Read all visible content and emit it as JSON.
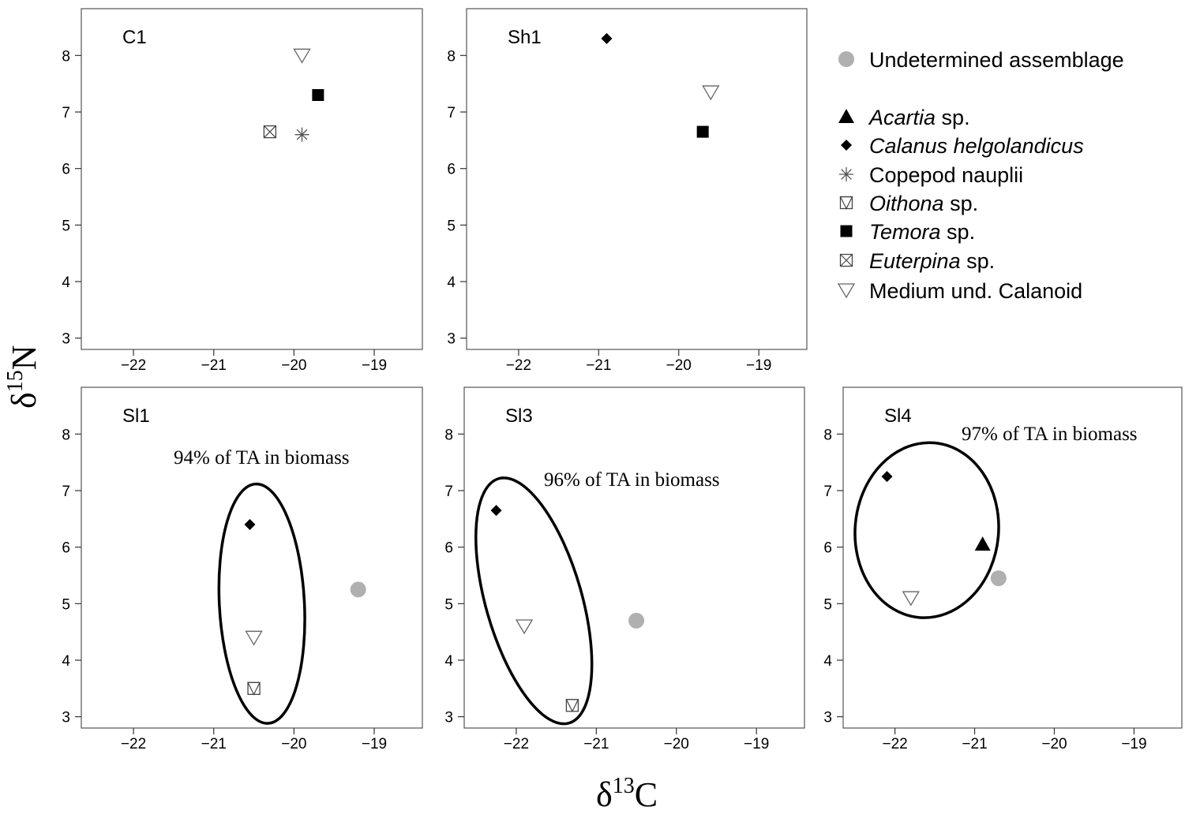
{
  "figure": {
    "xlabel_symbol": "δ",
    "xlabel_sup": "13",
    "xlabel_element": "C",
    "ylabel_symbol": "δ",
    "ylabel_sup": "15",
    "ylabel_element": "N"
  },
  "legend": [
    {
      "key": "undetermined",
      "marker": "circle-gray",
      "parts": [
        {
          "text": "Undetermined assemblage",
          "italic": false
        }
      ]
    },
    {
      "key": "acartia",
      "marker": "triangle-up",
      "parts": [
        {
          "text": "Acartia",
          "italic": true
        },
        {
          "text": " sp.",
          "italic": false
        }
      ]
    },
    {
      "key": "calanus",
      "marker": "diamond",
      "parts": [
        {
          "text": "Calanus helgolandicus",
          "italic": true
        }
      ]
    },
    {
      "key": "nauplii",
      "marker": "asterisk",
      "parts": [
        {
          "text": "Copepod nauplii",
          "italic": false
        }
      ]
    },
    {
      "key": "oithona",
      "marker": "square-triangle",
      "parts": [
        {
          "text": "Oithona",
          "italic": true
        },
        {
          "text": " sp.",
          "italic": false
        }
      ]
    },
    {
      "key": "temora",
      "marker": "square-filled",
      "parts": [
        {
          "text": "Temora",
          "italic": true
        },
        {
          "text": " sp.",
          "italic": false
        }
      ]
    },
    {
      "key": "euterpina",
      "marker": "square-x",
      "parts": [
        {
          "text": "Euterpina",
          "italic": true
        },
        {
          "text": " sp.",
          "italic": false
        }
      ]
    },
    {
      "key": "calanoid",
      "marker": "triangle-down",
      "parts": [
        {
          "text": "Medium und. Calanoid",
          "italic": false
        }
      ]
    }
  ],
  "chart_data": [
    {
      "type": "scatter",
      "panel": "C1",
      "xlim": [
        -22.65,
        -18.4
      ],
      "ylim": [
        2.8,
        8.8
      ],
      "xticks": [
        -22,
        -21,
        -20,
        -19
      ],
      "yticks": [
        3,
        4,
        5,
        6,
        7,
        8
      ],
      "points": [
        {
          "species": "calanoid",
          "x": -19.9,
          "y": 8.0
        },
        {
          "species": "temora",
          "x": -19.7,
          "y": 7.3
        },
        {
          "species": "euterpina",
          "x": -20.3,
          "y": 6.65
        },
        {
          "species": "nauplii",
          "x": -19.9,
          "y": 6.6
        }
      ]
    },
    {
      "type": "scatter",
      "panel": "Sh1",
      "xlim": [
        -22.65,
        -18.4
      ],
      "ylim": [
        2.8,
        8.8
      ],
      "xticks": [
        -22,
        -21,
        -20,
        -19
      ],
      "yticks": [
        3,
        4,
        5,
        6,
        7,
        8
      ],
      "points": [
        {
          "species": "calanus",
          "x": -20.9,
          "y": 8.3
        },
        {
          "species": "calanoid",
          "x": -19.6,
          "y": 7.35
        },
        {
          "species": "temora",
          "x": -19.7,
          "y": 6.65
        }
      ]
    },
    {
      "type": "scatter",
      "panel": "Sl1",
      "xlim": [
        -22.65,
        -18.4
      ],
      "ylim": [
        2.8,
        8.8
      ],
      "xticks": [
        -22,
        -21,
        -20,
        -19
      ],
      "yticks": [
        3,
        4,
        5,
        6,
        7,
        8
      ],
      "annotation": "94% of TA in biomass",
      "ellipse": {
        "cx": -20.4,
        "cy": 5.0,
        "rx": 0.53,
        "ry": 2.12,
        "rotate": -3
      },
      "points": [
        {
          "species": "calanus",
          "x": -20.55,
          "y": 6.4
        },
        {
          "species": "undetermined",
          "x": -19.2,
          "y": 5.25
        },
        {
          "species": "calanoid",
          "x": -20.5,
          "y": 4.4
        },
        {
          "species": "oithona",
          "x": -20.5,
          "y": 3.5
        }
      ]
    },
    {
      "type": "scatter",
      "panel": "Sl3",
      "xlim": [
        -22.65,
        -18.4
      ],
      "ylim": [
        2.8,
        8.8
      ],
      "xticks": [
        -22,
        -21,
        -20,
        -19
      ],
      "yticks": [
        3,
        4,
        5,
        6,
        7,
        8
      ],
      "annotation": "96% of TA in biomass",
      "ellipse": {
        "cx": -21.78,
        "cy": 5.05,
        "rx": 0.6,
        "ry": 2.25,
        "rotate": -16
      },
      "points": [
        {
          "species": "calanus",
          "x": -22.25,
          "y": 6.65
        },
        {
          "species": "undetermined",
          "x": -20.5,
          "y": 4.7
        },
        {
          "species": "calanoid",
          "x": -21.9,
          "y": 4.6
        },
        {
          "species": "oithona",
          "x": -21.3,
          "y": 3.2
        }
      ]
    },
    {
      "type": "scatter",
      "panel": "Sl4",
      "xlim": [
        -22.65,
        -18.4
      ],
      "ylim": [
        2.8,
        8.8
      ],
      "xticks": [
        -22,
        -21,
        -20,
        -19
      ],
      "yticks": [
        3,
        4,
        5,
        6,
        7,
        8
      ],
      "annotation": "97% of TA in biomass",
      "ellipse": {
        "cx": -21.6,
        "cy": 6.3,
        "rx": 0.9,
        "ry": 1.55,
        "rotate": 5
      },
      "points": [
        {
          "species": "calanus",
          "x": -22.1,
          "y": 7.25
        },
        {
          "species": "acartia",
          "x": -20.9,
          "y": 6.05
        },
        {
          "species": "undetermined",
          "x": -20.7,
          "y": 5.45
        },
        {
          "species": "calanoid",
          "x": -21.8,
          "y": 5.1
        }
      ]
    }
  ]
}
